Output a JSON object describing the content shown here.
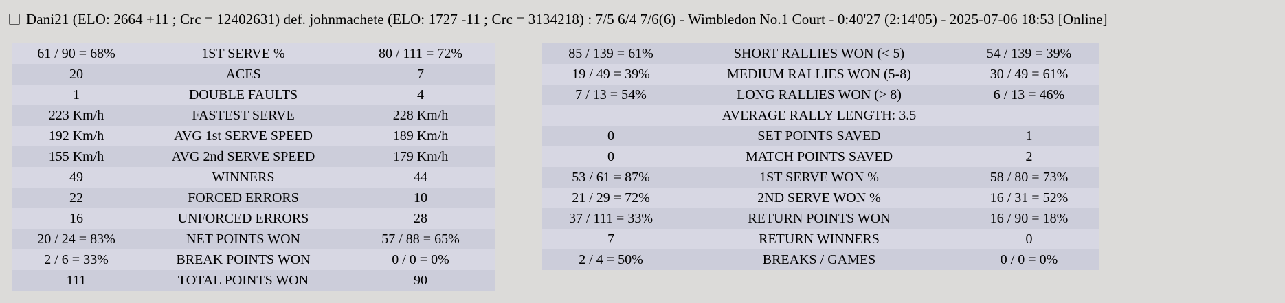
{
  "header": {
    "checkbox_checked": false,
    "title": "Dani21 (ELO: 2664 +11 ; Crc = 12402631) def. johnmachete (ELO: 1727 -11 ; Crc = 3134218) : 7/5 6/4 7/6(6) - Wimbledon No.1 Court - 0:40'27 (2:14'05) - 2025-07-06 18:53 [Online]"
  },
  "stats_left": {
    "rows": [
      {
        "p1": "61 / 90 = 68%",
        "label": "1ST SERVE %",
        "p2": "80 / 111 = 72%"
      },
      {
        "p1": "20",
        "label": "ACES",
        "p2": "7"
      },
      {
        "p1": "1",
        "label": "DOUBLE FAULTS",
        "p2": "4"
      },
      {
        "p1": "223 Km/h",
        "label": "FASTEST SERVE",
        "p2": "228 Km/h"
      },
      {
        "p1": "192 Km/h",
        "label": "AVG 1st SERVE SPEED",
        "p2": "189 Km/h"
      },
      {
        "p1": "155 Km/h",
        "label": "AVG 2nd SERVE SPEED",
        "p2": "179 Km/h"
      },
      {
        "p1": "49",
        "label": "WINNERS",
        "p2": "44"
      },
      {
        "p1": "22",
        "label": "FORCED ERRORS",
        "p2": "10"
      },
      {
        "p1": "16",
        "label": "UNFORCED ERRORS",
        "p2": "28"
      },
      {
        "p1": "20 / 24 = 83%",
        "label": "NET POINTS WON",
        "p2": "57 / 88 = 65%"
      },
      {
        "p1": "2 / 6 = 33%",
        "label": "BREAK POINTS WON",
        "p2": "0 / 0 = 0%"
      },
      {
        "p1": "111",
        "label": "TOTAL POINTS WON",
        "p2": "90"
      }
    ]
  },
  "stats_right": {
    "rows": [
      {
        "p1": "85 / 139 = 61%",
        "label": "SHORT RALLIES WON (< 5)",
        "p2": "54 / 139 = 39%"
      },
      {
        "p1": "19 / 49 = 39%",
        "label": "MEDIUM RALLIES WON (5-8)",
        "p2": "30 / 49 = 61%"
      },
      {
        "p1": "7 / 13 = 54%",
        "label": "LONG RALLIES WON (> 8)",
        "p2": "6 / 13 = 46%"
      },
      {
        "p1": "",
        "label": "AVERAGE RALLY LENGTH: 3.5",
        "p2": ""
      },
      {
        "p1": "0",
        "label": "SET POINTS SAVED",
        "p2": "1"
      },
      {
        "p1": "0",
        "label": "MATCH POINTS SAVED",
        "p2": "2"
      },
      {
        "p1": "53 / 61 = 87%",
        "label": "1ST SERVE WON %",
        "p2": "58 / 80 = 73%"
      },
      {
        "p1": "21 / 29 = 72%",
        "label": "2ND SERVE WON %",
        "p2": "16 / 31 = 52%"
      },
      {
        "p1": "37 / 111 = 33%",
        "label": "RETURN POINTS WON",
        "p2": "16 / 90 = 18%"
      },
      {
        "p1": "7",
        "label": "RETURN WINNERS",
        "p2": "0"
      },
      {
        "p1": "2 / 4 = 50%",
        "label": "BREAKS / GAMES",
        "p2": "0 / 0 = 0%"
      }
    ]
  },
  "colors": {
    "page_bg": "#dcdbd9",
    "row_light": "#d7d7e3",
    "row_dark": "#cccdda",
    "text": "#000000"
  }
}
